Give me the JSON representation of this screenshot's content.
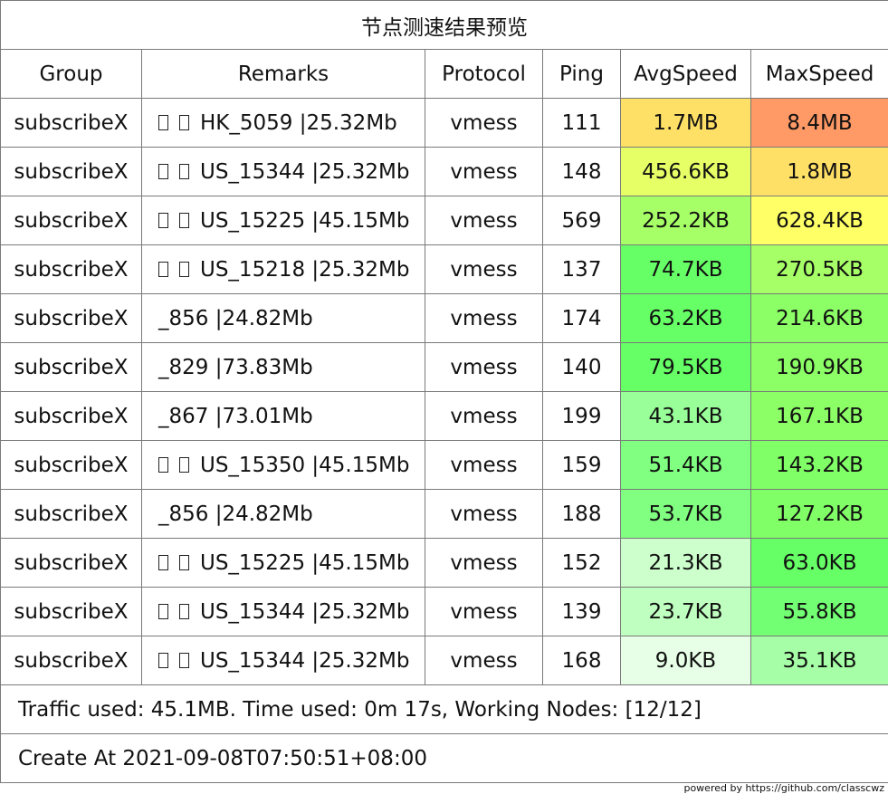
{
  "title": "节点测速结果预览",
  "columns": [
    "Group",
    "Remarks",
    "Protocol",
    "Ping",
    "AvgSpeed",
    "MaxSpeed"
  ],
  "rows": [
    {
      "group": "subscribeX",
      "flag": true,
      "remarks": "HK_5059 |25.32Mb",
      "protocol": "vmess",
      "ping": "111",
      "avg": "1.7MB",
      "avg_color": "#ffe066",
      "max": "8.4MB",
      "max_color": "#ff9966"
    },
    {
      "group": "subscribeX",
      "flag": true,
      "remarks": "US_15344 |25.32Mb",
      "protocol": "vmess",
      "ping": "148",
      "avg": "456.6KB",
      "avg_color": "#e6ff66",
      "max": "1.8MB",
      "max_color": "#ffe066"
    },
    {
      "group": "subscribeX",
      "flag": true,
      "remarks": "US_15225 |45.15Mb",
      "protocol": "vmess",
      "ping": "569",
      "avg": "252.2KB",
      "avg_color": "#a6ff66",
      "max": "628.4KB",
      "max_color": "#ffff66"
    },
    {
      "group": "subscribeX",
      "flag": true,
      "remarks": "US_15218 |25.32Mb",
      "protocol": "vmess",
      "ping": "137",
      "avg": "74.7KB",
      "avg_color": "#66ff66",
      "max": "270.5KB",
      "max_color": "#a6ff66"
    },
    {
      "group": "subscribeX",
      "flag": false,
      "remarks": "_856 |24.82Mb",
      "protocol": "vmess",
      "ping": "174",
      "avg": "63.2KB",
      "avg_color": "#66ff66",
      "max": "214.6KB",
      "max_color": "#8cff66"
    },
    {
      "group": "subscribeX",
      "flag": false,
      "remarks": "_829 |73.83Mb",
      "protocol": "vmess",
      "ping": "140",
      "avg": "79.5KB",
      "avg_color": "#66ff66",
      "max": "190.9KB",
      "max_color": "#8cff66"
    },
    {
      "group": "subscribeX",
      "flag": false,
      "remarks": "_867 |73.01Mb",
      "protocol": "vmess",
      "ping": "199",
      "avg": "43.1KB",
      "avg_color": "#99ff99",
      "max": "167.1KB",
      "max_color": "#8cff66"
    },
    {
      "group": "subscribeX",
      "flag": true,
      "remarks": "US_15350 |45.15Mb",
      "protocol": "vmess",
      "ping": "159",
      "avg": "51.4KB",
      "avg_color": "#80ff80",
      "max": "143.2KB",
      "max_color": "#80ff66"
    },
    {
      "group": "subscribeX",
      "flag": false,
      "remarks": "_856 |24.82Mb",
      "protocol": "vmess",
      "ping": "188",
      "avg": "53.7KB",
      "avg_color": "#80ff80",
      "max": "127.2KB",
      "max_color": "#80ff66"
    },
    {
      "group": "subscribeX",
      "flag": true,
      "remarks": "US_15225 |45.15Mb",
      "protocol": "vmess",
      "ping": "152",
      "avg": "21.3KB",
      "avg_color": "#ccffcc",
      "max": "63.0KB",
      "max_color": "#66ff66"
    },
    {
      "group": "subscribeX",
      "flag": true,
      "remarks": "US_15344 |25.32Mb",
      "protocol": "vmess",
      "ping": "139",
      "avg": "23.7KB",
      "avg_color": "#bfffbf",
      "max": "55.8KB",
      "max_color": "#73ff73"
    },
    {
      "group": "subscribeX",
      "flag": true,
      "remarks": "US_15344 |25.32Mb",
      "protocol": "vmess",
      "ping": "168",
      "avg": "9.0KB",
      "avg_color": "#e6ffe6",
      "max": "35.1KB",
      "max_color": "#a6ffa6"
    }
  ],
  "traffic_info": "Traffic used: 45.1MB. Time used: 0m 17s, Working Nodes: [12/12]",
  "create_at": "Create At 2021-09-08T07:50:51+08:00",
  "powered_by": "powered by https://github.com/classcwz"
}
